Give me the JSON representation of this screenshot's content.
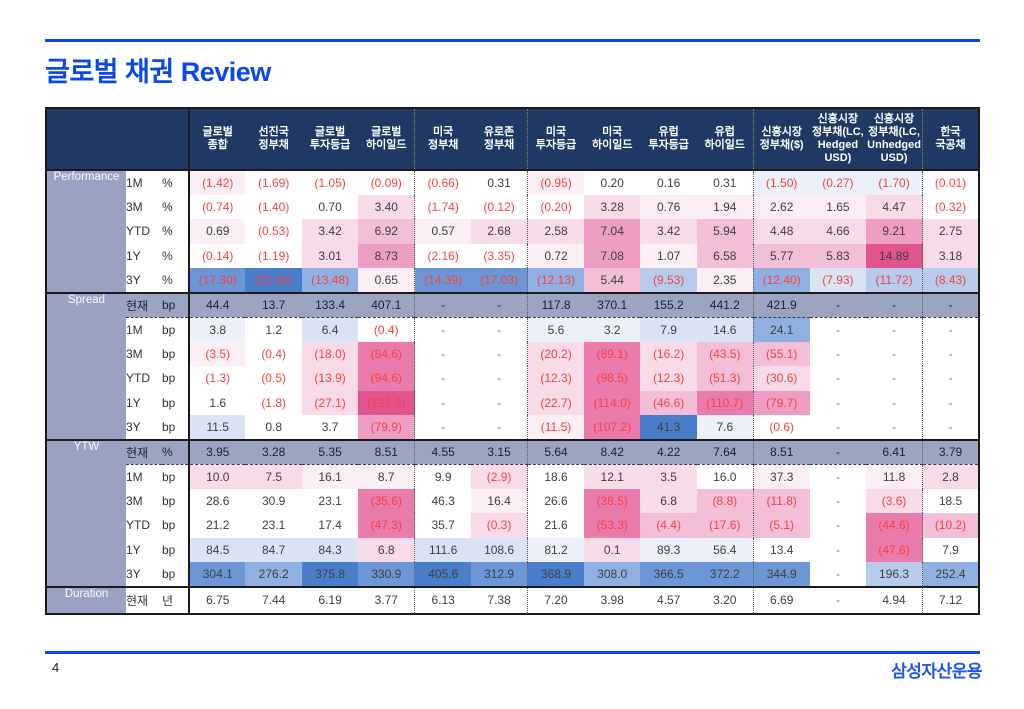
{
  "slide": {
    "title": "글로벌 채권 Review",
    "page_number": "4",
    "logo_text": "삼성자산운용"
  },
  "colors": {
    "accent_blue": "#0B48EC",
    "logo_blue": "#1D55EE",
    "header_bg": "#1F3864",
    "label_bg": "#99A2C3",
    "gray_row_bg": "#9BA5C2",
    "negative_text": "#F94141",
    "positive_text": "#3F3F3F",
    "gray_row_text": "#16213D"
  },
  "palette": {
    "w": "#FFFFFF",
    "p1": "#FBEEF4",
    "p2": "#F8DBE9",
    "p3": "#F3BED7",
    "p4": "#EE9EC5",
    "p5": "#E97BAD",
    "p6": "#E2538F",
    "b1": "#EBF0FA",
    "b2": "#D9E3F4",
    "b3": "#B7CCEC",
    "b4": "#8FB0E0",
    "b5": "#6C96D5",
    "b6": "#4A7ECB",
    "g": "#9BA5C2"
  },
  "table": {
    "columns": [
      "글로벌\n종합",
      "선진국\n정부채",
      "글로벌\n투자등급",
      "글로벌\n하이일드",
      "미국\n정부채",
      "유로존\n정부채",
      "미국\n투자등급",
      "미국\n하이일드",
      "유럽\n투자등급",
      "유럽\n하이일드",
      "신흥시장\n정부채($)",
      "신흥시장\n정부채(LC,\nHedged\nUSD)",
      "신흥시장\n정부채(LC,\nUnhedged\nUSD)",
      "한국\n국공채"
    ],
    "group_sep_after": [
      3,
      5,
      9,
      12
    ],
    "sections": [
      {
        "name": "Performance",
        "rows": [
          {
            "period": "1M",
            "unit": "%",
            "gray": false,
            "values": [
              "(1.42)",
              "(1.69)",
              "(1.05)",
              "(0.09)",
              "(0.66)",
              "0.31",
              "(0.95)",
              "0.20",
              "0.16",
              "0.31",
              "(1.50)",
              "(0.27)",
              "(1.70)",
              "(0.01)"
            ],
            "bgs": [
              "p1",
              "w",
              "w",
              "w",
              "w",
              "w",
              "p1",
              "w",
              "w",
              "w",
              "b1",
              "b1",
              "b1",
              "w"
            ]
          },
          {
            "period": "3M",
            "unit": "%",
            "gray": false,
            "values": [
              "(0.74)",
              "(1.40)",
              "0.70",
              "3.40",
              "(1.74)",
              "(0.12)",
              "(0.20)",
              "3.28",
              "0.76",
              "1.94",
              "2.62",
              "1.65",
              "4.47",
              "(0.32)"
            ],
            "bgs": [
              "w",
              "w",
              "w",
              "p2",
              "w",
              "w",
              "w",
              "p2",
              "p1",
              "p1",
              "p1",
              "p1",
              "p2",
              "w"
            ]
          },
          {
            "period": "YTD",
            "unit": "%",
            "gray": false,
            "values": [
              "0.69",
              "(0.53)",
              "3.42",
              "6.92",
              "0.57",
              "2.68",
              "2.58",
              "7.04",
              "3.42",
              "5.94",
              "4.48",
              "4.66",
              "9.21",
              "2.75"
            ],
            "bgs": [
              "p1",
              "w",
              "p2",
              "p3",
              "p1",
              "p2",
              "p2",
              "p4",
              "p2",
              "p3",
              "p2",
              "p2",
              "p4",
              "p2"
            ]
          },
          {
            "period": "1Y",
            "unit": "%",
            "gray": false,
            "values": [
              "(0.14)",
              "(1.19)",
              "3.01",
              "8.73",
              "(2.16)",
              "(3.35)",
              "0.72",
              "7.08",
              "1.07",
              "6.58",
              "5.77",
              "5.83",
              "14.89",
              "3.18"
            ],
            "bgs": [
              "w",
              "w",
              "p2",
              "p4",
              "w",
              "w",
              "p1",
              "p4",
              "p1",
              "p3",
              "p3",
              "p3",
              "p6",
              "p2"
            ]
          },
          {
            "period": "3Y",
            "unit": "%",
            "gray": false,
            "values": [
              "(17.30)",
              "(21.01)",
              "(13.48)",
              "0.65",
              "(14.39)",
              "(17.03)",
              "(12.13)",
              "5.44",
              "(9.53)",
              "2.35",
              "(12.40)",
              "(7.93)",
              "(11.72)",
              "(8.43)"
            ],
            "bgs": [
              "b5",
              "b6",
              "b4",
              "p1",
              "b5",
              "b5",
              "b4",
              "p3",
              "b3",
              "p1",
              "b4",
              "b2",
              "b3",
              "b3"
            ]
          }
        ]
      },
      {
        "name": "Spread",
        "rows": [
          {
            "period": "현재",
            "unit": "bp",
            "gray": true,
            "values": [
              "44.4",
              "13.7",
              "133.4",
              "407.1",
              "-",
              "-",
              "117.8",
              "370.1",
              "155.2",
              "441.2",
              "421.9",
              "-",
              "-",
              "-"
            ],
            "bgs": [
              "g",
              "g",
              "g",
              "g",
              "g",
              "g",
              "g",
              "g",
              "g",
              "g",
              "g",
              "g",
              "g",
              "g"
            ]
          },
          {
            "period": "1M",
            "unit": "bp",
            "gray": false,
            "values": [
              "3.8",
              "1.2",
              "6.4",
              "(0.4)",
              "-",
              "-",
              "5.6",
              "3.2",
              "7.9",
              "14.6",
              "24.1",
              "-",
              "-",
              "-"
            ],
            "bgs": [
              "b1",
              "w",
              "b2",
              "w",
              "w",
              "w",
              "b1",
              "b1",
              "b2",
              "b2",
              "b4",
              "w",
              "w",
              "w"
            ]
          },
          {
            "period": "3M",
            "unit": "bp",
            "gray": false,
            "values": [
              "(3.5)",
              "(0.4)",
              "(18.0)",
              "(84.6)",
              "-",
              "-",
              "(20.2)",
              "(89.1)",
              "(16.2)",
              "(43.5)",
              "(55.1)",
              "-",
              "-",
              "-"
            ],
            "bgs": [
              "p1",
              "w",
              "p2",
              "p5",
              "w",
              "w",
              "p2",
              "p5",
              "p2",
              "p3",
              "p3",
              "w",
              "w",
              "w"
            ]
          },
          {
            "period": "YTD",
            "unit": "bp",
            "gray": false,
            "values": [
              "(1.3)",
              "(0.5)",
              "(13.9)",
              "(94.6)",
              "-",
              "-",
              "(12.3)",
              "(98.5)",
              "(12.3)",
              "(51.3)",
              "(30.6)",
              "-",
              "-",
              "-"
            ],
            "bgs": [
              "w",
              "w",
              "p2",
              "p5",
              "w",
              "w",
              "p2",
              "p5",
              "p2",
              "p3",
              "p2",
              "w",
              "w",
              "w"
            ]
          },
          {
            "period": "1Y",
            "unit": "bp",
            "gray": false,
            "values": [
              "1.6",
              "(1.8)",
              "(27.1)",
              "(122.2)",
              "-",
              "-",
              "(22.7)",
              "(114.0)",
              "(46.6)",
              "(110.7)",
              "(79.7)",
              "-",
              "-",
              "-"
            ],
            "bgs": [
              "w",
              "w",
              "p2",
              "p6",
              "w",
              "w",
              "p2",
              "p5",
              "p3",
              "p5",
              "p4",
              "w",
              "w",
              "w"
            ]
          },
          {
            "period": "3Y",
            "unit": "bp",
            "gray": false,
            "values": [
              "11.5",
              "0.8",
              "3.7",
              "(79.9)",
              "-",
              "-",
              "(11.5)",
              "(107.2)",
              "41.3",
              "7.6",
              "(0.6)",
              "-",
              "-",
              "-"
            ],
            "bgs": [
              "b2",
              "w",
              "w",
              "p4",
              "w",
              "w",
              "p1",
              "p5",
              "b6",
              "b1",
              "w",
              "w",
              "w",
              "w"
            ]
          }
        ]
      },
      {
        "name": "YTW",
        "rows": [
          {
            "period": "현재",
            "unit": "%",
            "gray": true,
            "values": [
              "3.95",
              "3.28",
              "5.35",
              "8.51",
              "4.55",
              "3.15",
              "5.64",
              "8.42",
              "4.22",
              "7.64",
              "8.51",
              "-",
              "6.41",
              "3.79"
            ],
            "bgs": [
              "g",
              "g",
              "g",
              "g",
              "g",
              "g",
              "g",
              "g",
              "g",
              "g",
              "g",
              "g",
              "g",
              "g"
            ]
          },
          {
            "period": "1M",
            "unit": "bp",
            "gray": false,
            "values": [
              "10.0",
              "7.5",
              "16.1",
              "8.7",
              "9.9",
              "(2.9)",
              "18.6",
              "12.1",
              "3.5",
              "16.0",
              "37.3",
              "-",
              "11.8",
              "2.8"
            ],
            "bgs": [
              "p2",
              "p2",
              "p1",
              "p1",
              "w",
              "p2",
              "w",
              "p2",
              "p2",
              "w",
              "p1",
              "w",
              "p1",
              "p2"
            ]
          },
          {
            "period": "3M",
            "unit": "bp",
            "gray": false,
            "values": [
              "28.6",
              "30.9",
              "23.1",
              "(35.6)",
              "46.3",
              "16.4",
              "26.6",
              "(38.5)",
              "6.8",
              "(8.8)",
              "(11.8)",
              "-",
              "(3.6)",
              "18.5"
            ],
            "bgs": [
              "w",
              "w",
              "w",
              "p5",
              "w",
              "p1",
              "w",
              "p5",
              "p2",
              "p3",
              "p3",
              "w",
              "p2",
              "w"
            ]
          },
          {
            "period": "YTD",
            "unit": "bp",
            "gray": false,
            "values": [
              "21.2",
              "23.1",
              "17.4",
              "(47.3)",
              "35.7",
              "(0.3)",
              "21.6",
              "(53.3)",
              "(4.4)",
              "(17.6)",
              "(5.1)",
              "-",
              "(44.6)",
              "(10.2)"
            ],
            "bgs": [
              "w",
              "w",
              "w",
              "p5",
              "w",
              "p2",
              "w",
              "p5",
              "p3",
              "p3",
              "p3",
              "w",
              "p5",
              "p3"
            ]
          },
          {
            "period": "1Y",
            "unit": "bp",
            "gray": false,
            "values": [
              "84.5",
              "84.7",
              "84.3",
              "6.8",
              "111.6",
              "108.6",
              "81.2",
              "0.1",
              "89.3",
              "56.4",
              "13.4",
              "-",
              "(47.6)",
              "7.9"
            ],
            "bgs": [
              "b2",
              "b2",
              "b2",
              "p2",
              "b2",
              "b2",
              "b1",
              "p2",
              "b1",
              "b1",
              "w",
              "w",
              "p5",
              "w"
            ]
          },
          {
            "period": "3Y",
            "unit": "bp",
            "gray": false,
            "values": [
              "304.1",
              "276.2",
              "375.8",
              "330.9",
              "405.6",
              "312.9",
              "368.9",
              "308.0",
              "366.5",
              "372.2",
              "344.9",
              "-",
              "196.3",
              "252.4"
            ],
            "bgs": [
              "b5",
              "b4",
              "b6",
              "b5",
              "b6",
              "b5",
              "b6",
              "b4",
              "b5",
              "b5",
              "b5",
              "w",
              "b3",
              "b4"
            ]
          }
        ]
      },
      {
        "name": "Duration",
        "rows": [
          {
            "period": "현재",
            "unit": "년",
            "gray": false,
            "tall": true,
            "values": [
              "6.75",
              "7.44",
              "6.19",
              "3.77",
              "6.13",
              "7.38",
              "7.20",
              "3.98",
              "4.57",
              "3.20",
              "6.69",
              "-",
              "4.94",
              "7.12"
            ],
            "bgs": [
              "w",
              "w",
              "w",
              "w",
              "w",
              "w",
              "w",
              "w",
              "w",
              "w",
              "w",
              "w",
              "w",
              "w"
            ]
          }
        ]
      }
    ]
  }
}
